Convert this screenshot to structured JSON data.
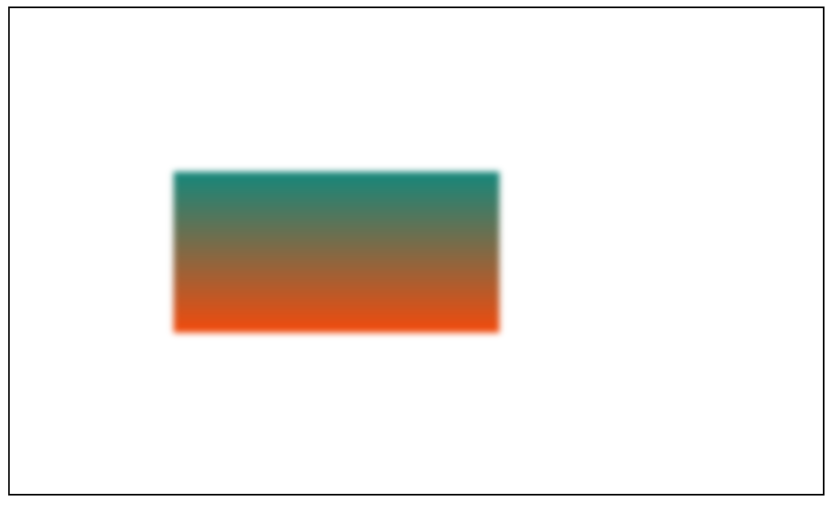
{
  "canvas": {
    "border_color": "#000000",
    "background_color": "#ffffff"
  },
  "shape": {
    "kind": "rectangle",
    "fill": "vertical-gradient",
    "gradient_top_color": "#14877b",
    "gradient_bottom_color": "#f24a0c",
    "blurred": true
  }
}
